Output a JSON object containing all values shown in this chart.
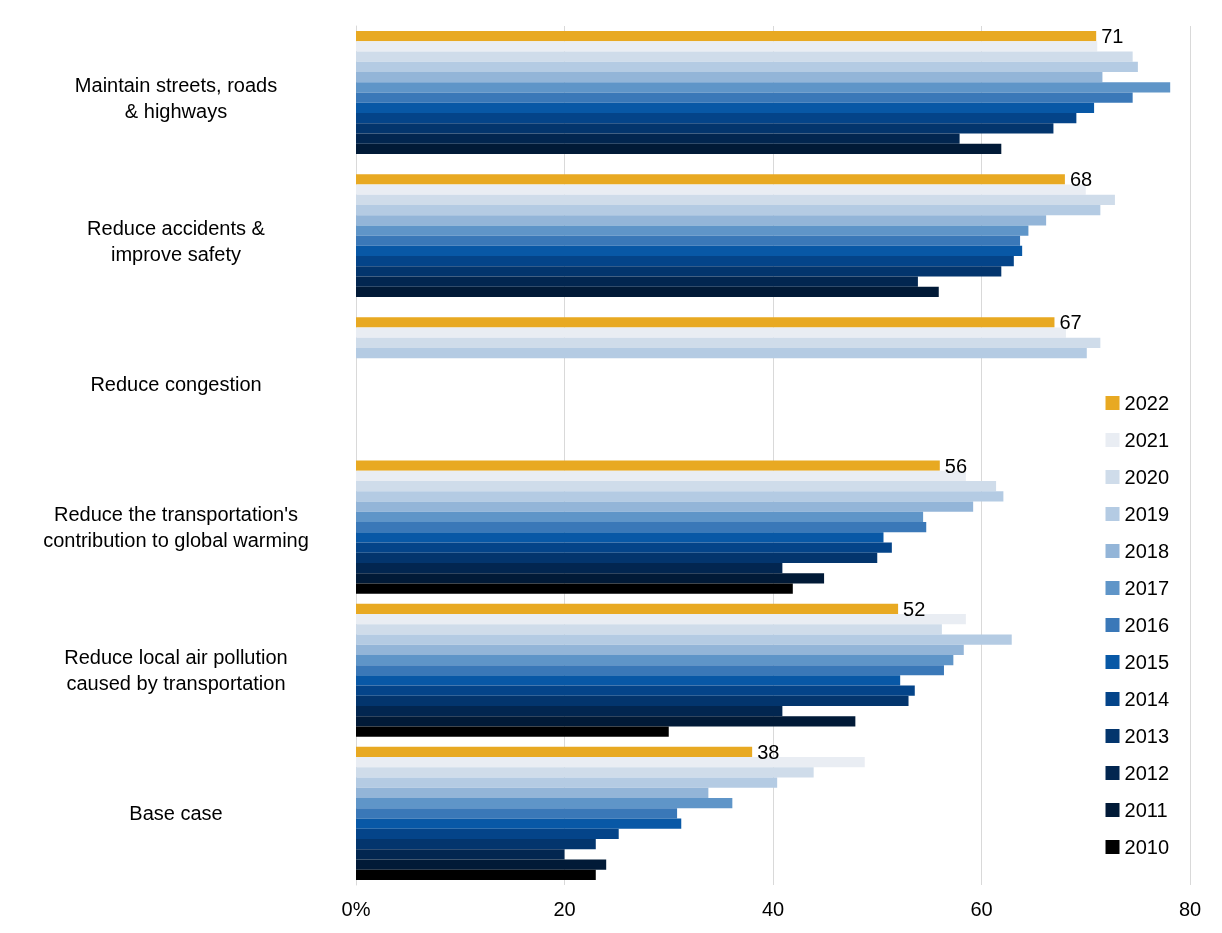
{
  "chart_data": {
    "type": "bar",
    "orientation": "horizontal",
    "categories": [
      "Maintain streets, roads\n& highways",
      "Reduce accidents &\nimprove safety",
      "Reduce congestion",
      "Reduce the transportation's\ncontribution to global warming",
      "Reduce local air pollution\ncaused by transportation",
      "Base case"
    ],
    "series": [
      {
        "name": "2022",
        "color": "#e8a922",
        "values": [
          71,
          68,
          67,
          56,
          52,
          38
        ],
        "value_labels": [
          "71",
          "68",
          "67",
          "56",
          "52",
          "38"
        ]
      },
      {
        "name": "2021",
        "color": "#e9edf3",
        "values": [
          71.1,
          70.0,
          68.1,
          58.5,
          58.5,
          48.8
        ]
      },
      {
        "name": "2020",
        "color": "#cfdcea",
        "values": [
          74.5,
          72.8,
          71.4,
          61.4,
          56.2,
          43.9
        ]
      },
      {
        "name": "2019",
        "color": "#b4cbe3",
        "values": [
          75.0,
          71.4,
          70.1,
          62.1,
          62.9,
          40.4
        ]
      },
      {
        "name": "2018",
        "color": "#93b5d8",
        "values": [
          71.6,
          66.2,
          null,
          59.2,
          58.3,
          33.8
        ]
      },
      {
        "name": "2017",
        "color": "#5f95c8",
        "values": [
          78.1,
          64.5,
          null,
          54.4,
          57.3,
          36.1
        ]
      },
      {
        "name": "2016",
        "color": "#3a78b8",
        "values": [
          74.5,
          63.7,
          null,
          54.7,
          56.4,
          30.8
        ]
      },
      {
        "name": "2015",
        "color": "#0858a6",
        "values": [
          70.8,
          63.9,
          null,
          50.6,
          52.2,
          31.2
        ]
      },
      {
        "name": "2014",
        "color": "#044489",
        "values": [
          69.1,
          63.1,
          null,
          51.4,
          53.6,
          25.2
        ]
      },
      {
        "name": "2013",
        "color": "#03356d",
        "values": [
          66.9,
          61.9,
          null,
          50.0,
          53.0,
          23.0
        ]
      },
      {
        "name": "2012",
        "color": "#022650",
        "values": [
          57.9,
          53.9,
          null,
          40.9,
          40.9,
          20.0
        ]
      },
      {
        "name": "2011",
        "color": "#011a37",
        "values": [
          61.9,
          55.9,
          null,
          44.9,
          47.9,
          24.0
        ]
      },
      {
        "name": "2010",
        "color": "#000000",
        "values": [
          null,
          null,
          null,
          41.9,
          30.0,
          23.0
        ]
      }
    ],
    "xlim": [
      0,
      80
    ],
    "xticks": [
      {
        "value": 0,
        "label": "0%"
      },
      20,
      40,
      60,
      80
    ],
    "grid": "x",
    "legend": "right"
  }
}
